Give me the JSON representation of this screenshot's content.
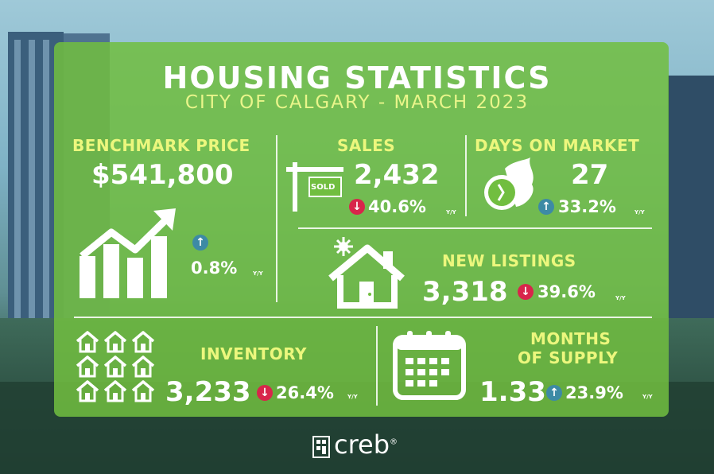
{
  "header": {
    "title": "HOUSING STATISTICS",
    "subtitle": "CITY OF CALGARY - MARCH 2023"
  },
  "benchmark_price": {
    "label": "BENCHMARK PRICE",
    "value": "$541,800",
    "change": "0.8%",
    "change_unit": "Y/Y",
    "direction": "up"
  },
  "sales": {
    "value": "2,432",
    "label": "SALES",
    "sign_text": "SOLD",
    "change": "40.6%",
    "change_unit": "Y/Y",
    "direction": "down"
  },
  "days_on_market": {
    "label": "DAYS ON MARKET",
    "value": "27",
    "change": "33.2%",
    "change_unit": "Y/Y",
    "direction": "up"
  },
  "new_listings": {
    "label": "NEW LISTINGS",
    "value": "3,318",
    "change": "39.6%",
    "change_unit": "Y/Y",
    "direction": "down"
  },
  "inventory": {
    "label": "INVENTORY",
    "value": "3,233",
    "change": "26.4%",
    "change_unit": "Y/Y",
    "direction": "down"
  },
  "months_of_supply": {
    "label_line1": "MONTHS",
    "label_line2": "OF SUPPLY",
    "value": "1.33",
    "change": "23.9%",
    "change_unit": "Y/Y",
    "direction": "up"
  },
  "brand": {
    "name": "creb",
    "mark": "®"
  },
  "colors": {
    "panel": "#71be40",
    "label_yellow": "#ecf77d",
    "up_arrow": "#3d8aa5",
    "down_arrow": "#d8254b"
  },
  "icons": [
    "growth-chart-icon",
    "sold-sign-icon",
    "fast-clock-icon",
    "house-icon",
    "houses-grid-icon",
    "calendar-icon",
    "arrow-up-icon",
    "arrow-down-icon",
    "creb-logo-icon"
  ]
}
